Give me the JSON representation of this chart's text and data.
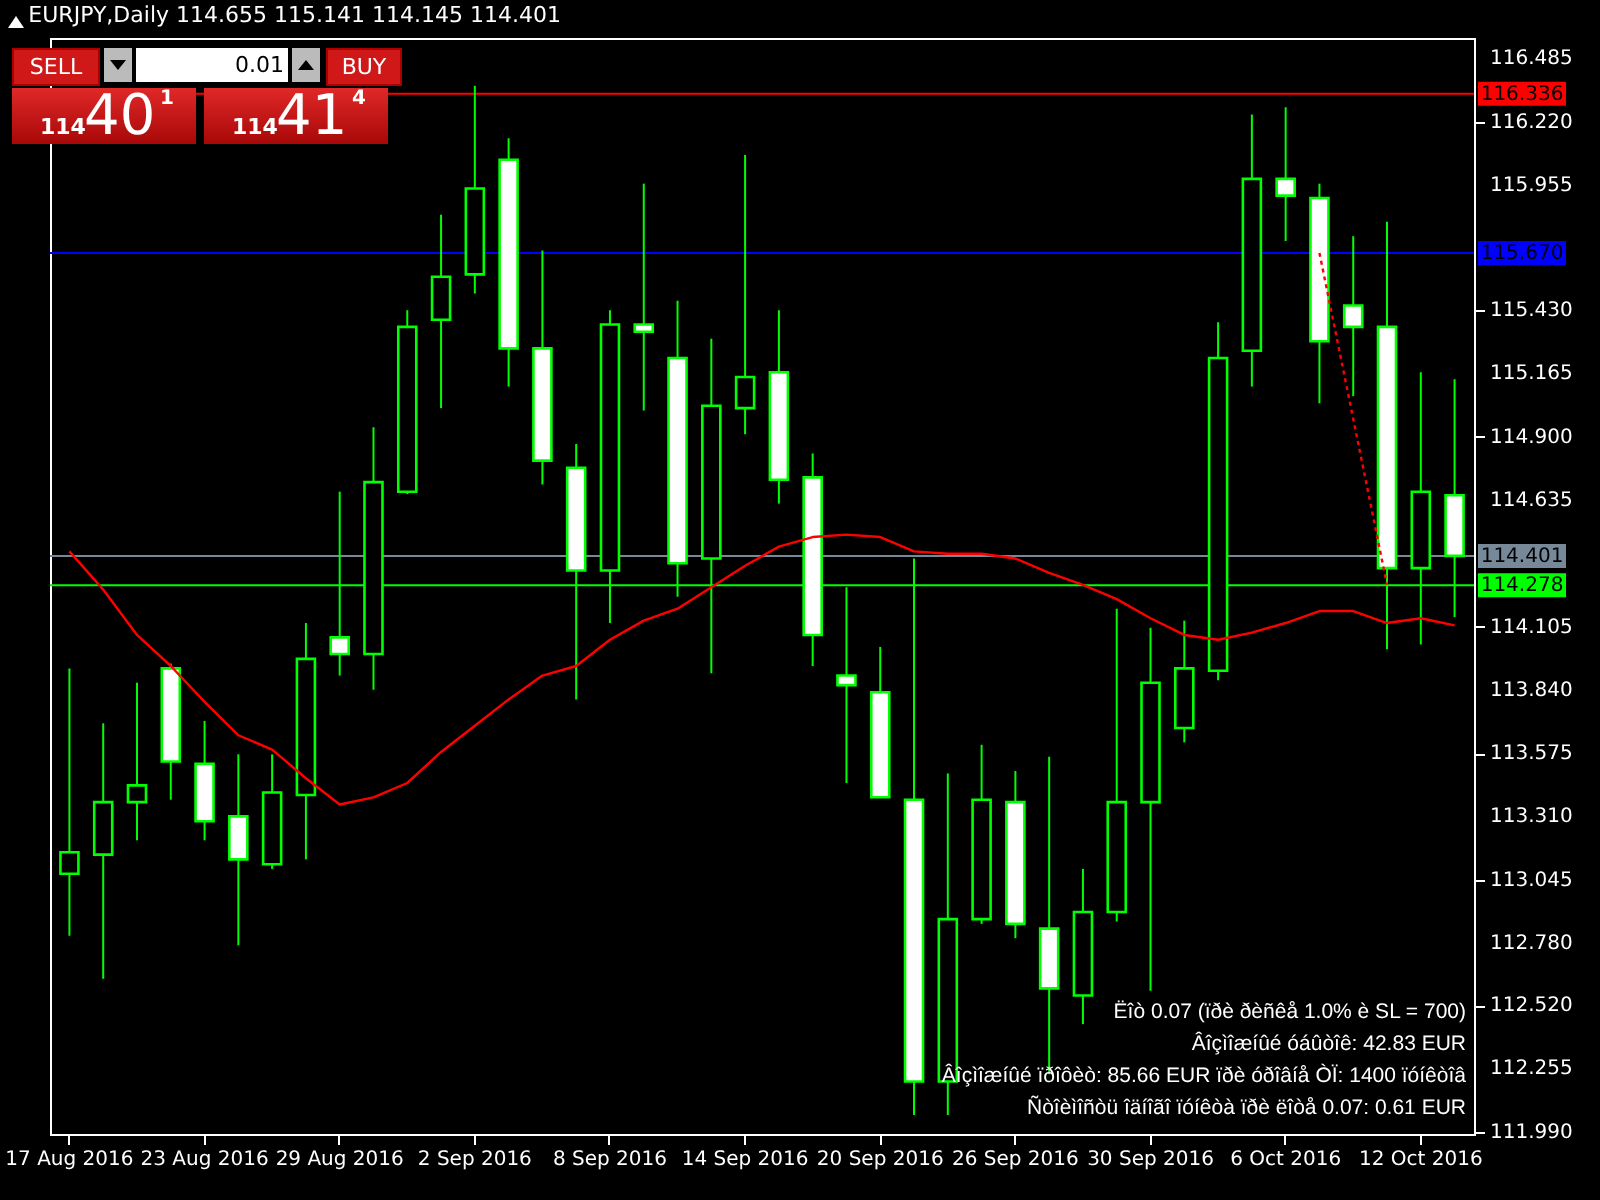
{
  "chart_data": {
    "type": "candlestick",
    "title": "EURJPY,Daily  114.655 115.141 114.145 114.401",
    "categories": [
      "17 Aug 2016",
      null,
      null,
      null,
      "23 Aug 2016",
      null,
      null,
      null,
      "29 Aug 2016",
      null,
      null,
      null,
      "2 Sep 2016",
      null,
      null,
      null,
      "8 Sep 2016",
      null,
      null,
      null,
      "14 Sep 2016",
      null,
      null,
      null,
      "20 Sep 2016",
      null,
      null,
      null,
      "26 Sep 2016",
      null,
      null,
      null,
      "30 Sep 2016",
      null,
      null,
      null,
      "6 Oct 2016",
      null,
      null,
      null,
      "12 Oct 2016",
      null
    ],
    "series": [
      {
        "type": "candlestick",
        "color": "#00ff00",
        "ohlc": [
          [
            113.07,
            113.93,
            112.81,
            113.16
          ],
          [
            113.15,
            113.7,
            112.63,
            113.37
          ],
          [
            113.37,
            113.87,
            113.21,
            113.44
          ],
          [
            113.93,
            113.95,
            113.38,
            113.54
          ],
          [
            113.53,
            113.71,
            113.21,
            113.29
          ],
          [
            113.31,
            113.57,
            112.77,
            113.13
          ],
          [
            113.11,
            113.57,
            113.09,
            113.41
          ],
          [
            113.4,
            114.12,
            113.13,
            113.97
          ],
          [
            114.06,
            114.67,
            113.9,
            113.99
          ],
          [
            113.99,
            114.94,
            113.84,
            114.71
          ],
          [
            114.67,
            115.43,
            114.66,
            115.36
          ],
          [
            115.39,
            115.83,
            115.02,
            115.57
          ],
          [
            115.58,
            116.37,
            115.5,
            115.94
          ],
          [
            116.06,
            116.15,
            115.11,
            115.27
          ],
          [
            115.27,
            115.68,
            114.7,
            114.8
          ],
          [
            114.77,
            114.87,
            113.8,
            114.34
          ],
          [
            114.34,
            115.43,
            114.12,
            115.37
          ],
          [
            115.37,
            115.96,
            115.01,
            115.34
          ],
          [
            115.23,
            115.47,
            114.23,
            114.37
          ],
          [
            114.39,
            115.31,
            113.91,
            115.03
          ],
          [
            115.02,
            116.08,
            114.91,
            115.15
          ],
          [
            115.17,
            115.43,
            114.62,
            114.72
          ],
          [
            114.73,
            114.83,
            113.94,
            114.07
          ],
          [
            113.9,
            114.27,
            113.45,
            113.86
          ],
          [
            113.83,
            114.02,
            113.39,
            113.39
          ],
          [
            113.38,
            114.39,
            112.06,
            112.2
          ],
          [
            112.2,
            113.49,
            112.06,
            112.88
          ],
          [
            112.88,
            113.61,
            112.86,
            113.38
          ],
          [
            113.37,
            113.5,
            112.8,
            112.86
          ],
          [
            112.84,
            113.56,
            112.23,
            112.59
          ],
          [
            112.56,
            113.09,
            112.44,
            112.91
          ],
          [
            112.91,
            114.18,
            112.87,
            113.37
          ],
          [
            113.37,
            114.1,
            112.58,
            113.87
          ],
          [
            113.68,
            114.13,
            113.62,
            113.93
          ],
          [
            113.92,
            115.38,
            113.88,
            115.23
          ],
          [
            115.26,
            116.25,
            115.11,
            115.98
          ],
          [
            115.98,
            116.28,
            115.72,
            115.91
          ],
          [
            115.9,
            115.96,
            115.04,
            115.3
          ],
          [
            115.45,
            115.74,
            115.07,
            115.36
          ],
          [
            115.36,
            115.8,
            114.01,
            114.35
          ],
          [
            114.35,
            115.17,
            114.03,
            114.67
          ],
          [
            114.655,
            115.141,
            114.145,
            114.401
          ]
        ]
      },
      {
        "type": "line",
        "color": "#ff0000",
        "values": [
          114.42,
          114.26,
          114.07,
          113.94,
          113.79,
          113.65,
          113.59,
          113.47,
          113.36,
          113.39,
          113.45,
          113.58,
          113.69,
          113.8,
          113.9,
          113.94,
          114.05,
          114.13,
          114.18,
          114.27,
          114.36,
          114.44,
          114.48,
          114.49,
          114.48,
          114.42,
          114.41,
          114.41,
          114.39,
          114.33,
          114.28,
          114.22,
          114.14,
          114.07,
          114.05,
          114.08,
          114.12,
          114.17,
          114.17,
          114.12,
          114.14,
          114.11
        ]
      },
      {
        "type": "line",
        "color": "#ff0000",
        "line_style": "dashed",
        "values": [
          null,
          null,
          null,
          null,
          null,
          null,
          null,
          null,
          null,
          null,
          null,
          null,
          null,
          null,
          null,
          null,
          null,
          null,
          null,
          null,
          null,
          null,
          null,
          null,
          null,
          null,
          null,
          null,
          null,
          null,
          null,
          null,
          null,
          null,
          null,
          null,
          null,
          115.67,
          null,
          114.28,
          null,
          null
        ]
      }
    ],
    "ylim": [
      111.98,
      116.57
    ],
    "yticks": [
      116.485,
      {
        "value": 116.22,
        "label": "116.220"
      },
      115.955,
      {
        "value": 115.43,
        "label": "115.430"
      },
      115.165,
      {
        "value": 114.9,
        "label": "114.900"
      },
      114.635,
      114.105,
      {
        "value": 113.84,
        "label": "113.840"
      },
      113.575,
      {
        "value": 113.31,
        "label": "113.310"
      },
      113.045,
      {
        "value": 112.78,
        "label": "112.780"
      },
      {
        "value": 112.52,
        "label": "112.520"
      },
      112.255,
      {
        "value": 111.99,
        "label": "111.990"
      }
    ],
    "ref_lines": [
      {
        "axis": "y",
        "value": 116.336,
        "label": "116.336",
        "color": "#ff0000"
      },
      {
        "axis": "y",
        "value": 115.67,
        "label": "115.670",
        "color": "#0000ff"
      },
      {
        "axis": "y",
        "value": 114.401,
        "label": "114.401",
        "color": "#778899"
      },
      {
        "axis": "y",
        "value": 114.278,
        "label": "114.278",
        "color": "#00ff00"
      }
    ],
    "annotations": [
      "SELL",
      "BUY",
      "0.01",
      "114",
      "40",
      "1",
      "114",
      "41",
      "4",
      "Ëîò 0.07 (ïðè ðèñêå 1.0% è SL = 700)",
      "Âîçìîæíûé óáûòîê: 42.83 EUR",
      "Âîçìîæíûé ïðîôèò: 85.66 EUR ïðè óðîâíå ÒÏ: 1400 ïóíêòîâ",
      "Ñòîèìîñòü îäíîãî ïóíêòà ïðè ëîòå 0.07: 0.61 EUR"
    ]
  }
}
